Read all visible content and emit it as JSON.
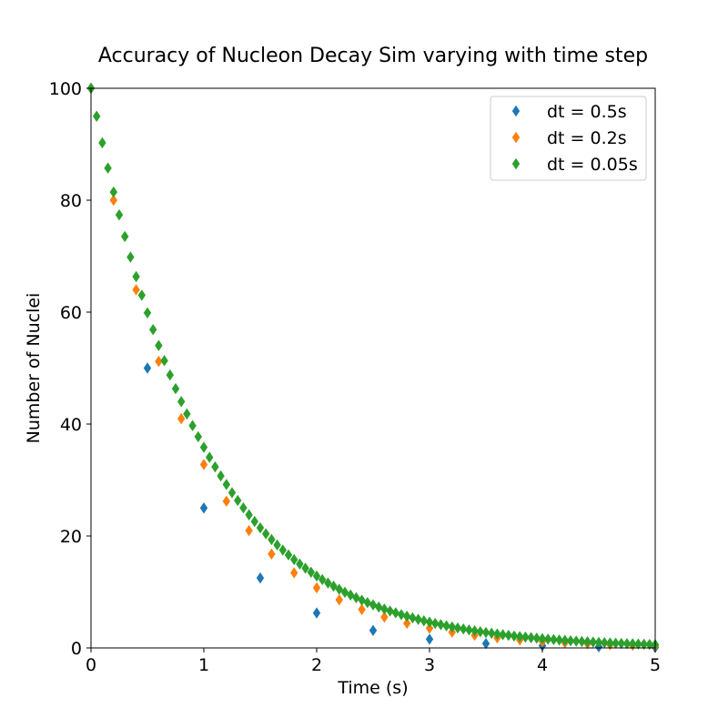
{
  "chart_data": {
    "type": "scatter",
    "title": "Accuracy of Nucleon Decay Sim varying with time step",
    "xlabel": "Time (s)",
    "ylabel": "Number of Nuclei",
    "xlim": [
      0,
      5
    ],
    "ylim": [
      0,
      100
    ],
    "xticks": [
      "0",
      "1",
      "2",
      "3",
      "4",
      "5"
    ],
    "yticks": [
      "0",
      "20",
      "40",
      "60",
      "80",
      "100"
    ],
    "grid": false,
    "legend_position": "top-right",
    "marker": "diamond",
    "series": [
      {
        "name": "dt = 0.5s",
        "color": "#1f77b4",
        "dt": 0.5,
        "x": [
          0,
          0.5,
          1.0,
          1.5,
          2.0,
          2.5,
          3.0,
          3.5,
          4.0,
          4.5,
          5.0
        ],
        "y": [
          100,
          50,
          25,
          12.5,
          6.25,
          3.125,
          1.5625,
          0.78125,
          0.390625,
          0.1953125,
          0.09765625
        ]
      },
      {
        "name": "dt = 0.2s",
        "color": "#ff7f0e",
        "dt": 0.2,
        "x": [
          0,
          0.2,
          0.4,
          0.6,
          0.8,
          1.0,
          1.2,
          1.4,
          1.6,
          1.8,
          2.0,
          2.2,
          2.4,
          2.6,
          2.8,
          3.0,
          3.2,
          3.4,
          3.6,
          3.8,
          4.0,
          4.2,
          4.4,
          4.6,
          4.8,
          5.0
        ],
        "y": [
          100,
          80,
          64,
          51.2,
          40.96,
          32.77,
          26.21,
          20.97,
          16.78,
          13.42,
          10.74,
          8.59,
          6.87,
          5.5,
          4.4,
          3.52,
          2.81,
          2.25,
          1.8,
          1.44,
          1.15,
          0.92,
          0.74,
          0.59,
          0.47,
          0.38
        ]
      },
      {
        "name": "dt = 0.05s",
        "color": "#2ca02c",
        "dt": 0.05,
        "x": [
          0,
          0.05,
          0.1,
          0.15,
          0.2,
          0.25,
          0.3,
          0.35,
          0.4,
          0.45,
          0.5,
          0.55,
          0.6,
          0.65,
          0.7,
          0.75,
          0.8,
          0.85,
          0.9,
          0.95,
          1.0,
          1.05,
          1.1,
          1.15,
          1.2,
          1.25,
          1.3,
          1.35,
          1.4,
          1.45,
          1.5,
          1.55,
          1.6,
          1.65,
          1.7,
          1.75,
          1.8,
          1.85,
          1.9,
          1.95,
          2.0,
          2.05,
          2.1,
          2.15,
          2.2,
          2.25,
          2.3,
          2.35,
          2.4,
          2.45,
          2.5,
          2.55,
          2.6,
          2.65,
          2.7,
          2.75,
          2.8,
          2.85,
          2.9,
          2.95,
          3.0,
          3.05,
          3.1,
          3.15,
          3.2,
          3.25,
          3.3,
          3.35,
          3.4,
          3.45,
          3.5,
          3.55,
          3.6,
          3.65,
          3.7,
          3.75,
          3.8,
          3.85,
          3.9,
          3.95,
          4.0,
          4.05,
          4.1,
          4.15,
          4.2,
          4.25,
          4.3,
          4.35,
          4.4,
          4.45,
          4.5,
          4.55,
          4.6,
          4.65,
          4.7,
          4.75,
          4.8,
          4.85,
          4.9,
          4.95,
          5.0
        ],
        "y": [
          100,
          95,
          90.25,
          85.74,
          81.45,
          77.38,
          73.51,
          69.83,
          66.34,
          63.02,
          59.87,
          56.88,
          54.04,
          51.33,
          48.77,
          46.33,
          44.01,
          41.81,
          39.72,
          37.74,
          35.85,
          34.06,
          32.35,
          30.74,
          29.2,
          27.74,
          26.35,
          25.03,
          23.78,
          22.59,
          21.46,
          20.39,
          19.37,
          18.4,
          17.48,
          16.61,
          15.78,
          14.99,
          14.24,
          13.53,
          12.85,
          12.21,
          11.6,
          11.02,
          10.47,
          9.94,
          9.45,
          8.97,
          8.53,
          8.1,
          7.69,
          7.31,
          6.94,
          6.6,
          6.27,
          5.95,
          5.66,
          5.37,
          5.1,
          4.85,
          4.61,
          4.38,
          4.16,
          3.95,
          3.75,
          3.56,
          3.39,
          3.22,
          3.06,
          2.9,
          2.76,
          2.62,
          2.49,
          2.36,
          2.25,
          2.13,
          2.03,
          1.93,
          1.83,
          1.74,
          1.65,
          1.57,
          1.49,
          1.42,
          1.35,
          1.28,
          1.21,
          1.15,
          1.1,
          1.04,
          0.99,
          0.94,
          0.89,
          0.85,
          0.81,
          0.77,
          0.73,
          0.69,
          0.66,
          0.62,
          0.59
        ]
      }
    ]
  }
}
